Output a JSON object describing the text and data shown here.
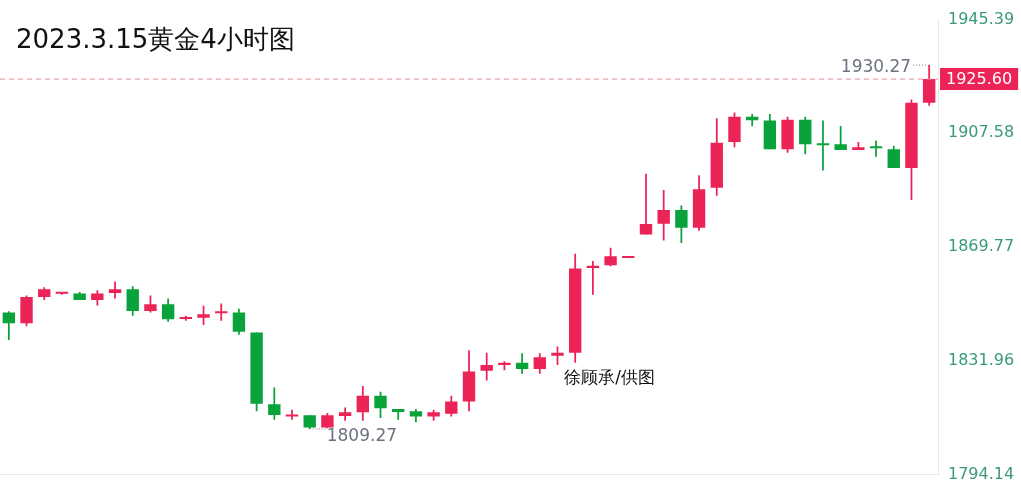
{
  "chart_data": {
    "type": "candlestick",
    "title": "2023.3.15黄金4小时图",
    "categories": [
      null,
      null,
      null,
      null,
      null,
      null,
      null,
      null,
      null,
      null,
      null,
      null,
      null,
      null,
      null,
      null,
      null,
      null,
      null,
      null,
      null,
      null,
      null,
      null,
      null,
      null,
      null,
      null,
      null,
      null,
      null,
      null,
      null,
      null,
      null,
      null,
      null,
      null,
      null,
      null,
      null,
      null,
      null,
      null,
      null,
      null,
      null,
      null,
      null,
      null,
      null,
      null,
      null
    ],
    "ohlc": [
      [
        1848.0,
        1848.4,
        1838.8,
        1844.4
      ],
      [
        1844.4,
        1853.6,
        1843.4,
        1853.1
      ],
      [
        1853.1,
        1856.4,
        1852.1,
        1855.7
      ],
      [
        1854.2,
        1854.8,
        1853.9,
        1854.4
      ],
      [
        1854.3,
        1854.8,
        1852.1,
        1852.1
      ],
      [
        1852.1,
        1855.4,
        1850.3,
        1854.3
      ],
      [
        1854.5,
        1858.3,
        1852.6,
        1855.7
      ],
      [
        1855.7,
        1856.7,
        1846.9,
        1848.5
      ],
      [
        1848.5,
        1853.6,
        1848.0,
        1850.7
      ],
      [
        1850.7,
        1852.6,
        1844.9,
        1845.7
      ],
      [
        1845.8,
        1846.9,
        1845.2,
        1846.1
      ],
      [
        1846.2,
        1850.2,
        1843.8,
        1847.4
      ],
      [
        1847.7,
        1851.0,
        1845.2,
        1848.0
      ],
      [
        1848.0,
        1849.2,
        1840.6,
        1841.6
      ],
      [
        1841.3,
        1841.3,
        1815.1,
        1817.6
      ],
      [
        1817.5,
        1823.0,
        1812.3,
        1813.9
      ],
      [
        1813.4,
        1815.6,
        1812.3,
        1813.7
      ],
      [
        1813.8,
        1813.8,
        1809.27,
        1809.7
      ],
      [
        1809.7,
        1814.6,
        1809.5,
        1813.8
      ],
      [
        1813.6,
        1816.4,
        1812.0,
        1814.8
      ],
      [
        1814.8,
        1823.5,
        1812.0,
        1820.3
      ],
      [
        1820.3,
        1821.6,
        1812.9,
        1816.1
      ],
      [
        1815.9,
        1815.9,
        1812.3,
        1814.9
      ],
      [
        1815.1,
        1815.9,
        1811.5,
        1813.4
      ],
      [
        1813.4,
        1815.6,
        1812.0,
        1814.8
      ],
      [
        1814.3,
        1820.3,
        1813.4,
        1818.4
      ],
      [
        1818.4,
        1835.4,
        1815.1,
        1828.4
      ],
      [
        1828.6,
        1834.6,
        1825.4,
        1830.5
      ],
      [
        1830.5,
        1831.8,
        1828.8,
        1831.3
      ],
      [
        1831.3,
        1834.4,
        1827.6,
        1829.2
      ],
      [
        1829.2,
        1834.4,
        1827.6,
        1833.1
      ],
      [
        1833.6,
        1836.7,
        1830.5,
        1834.6
      ],
      [
        1834.6,
        1867.5,
        1831.3,
        1862.6
      ],
      [
        1862.8,
        1865.1,
        1853.9,
        1863.5
      ],
      [
        1863.7,
        1869.5,
        1863.4,
        1866.7
      ],
      [
        1866.1,
        1866.2,
        1866.1,
        1866.2
      ],
      [
        1873.9,
        1894.1,
        1873.9,
        1877.4
      ],
      [
        1877.5,
        1888.7,
        1871.9,
        1882.1
      ],
      [
        1882.1,
        1883.6,
        1871.1,
        1876.2
      ],
      [
        1876.2,
        1893.6,
        1875.2,
        1889.0
      ],
      [
        1889.5,
        1912.6,
        1886.8,
        1904.4
      ],
      [
        1904.7,
        1914.5,
        1902.9,
        1913.1
      ],
      [
        1913.1,
        1914.0,
        1909.9,
        1911.9
      ],
      [
        1911.8,
        1914.0,
        1902.3,
        1902.3
      ],
      [
        1902.3,
        1913.1,
        1901.1,
        1912.1
      ],
      [
        1912.1,
        1913.1,
        1900.6,
        1903.9
      ],
      [
        1903.9,
        1911.8,
        1895.2,
        1903.6
      ],
      [
        1903.9,
        1910.0,
        1902.0,
        1902.0
      ],
      [
        1902.0,
        1904.7,
        1902.0,
        1902.9
      ],
      [
        1902.8,
        1905.2,
        1899.8,
        1902.6
      ],
      [
        1902.3,
        1903.4,
        1896.0,
        1896.0
      ],
      [
        1896.0,
        1918.8,
        1885.4,
        1917.7
      ],
      [
        1917.7,
        1930.27,
        1916.7,
        1925.6
      ]
    ],
    "colors": [
      "#0aa33b",
      "#ec2356",
      "#ec2356",
      "#ec2356",
      "#0aa33b",
      "#ec2356",
      "#ec2356",
      "#0aa33b",
      "#ec2356",
      "#0aa33b",
      "#ec2356",
      "#ec2356",
      "#ec2356",
      "#0aa33b",
      "#0aa33b",
      "#0aa33b",
      "#ec2356",
      "#0aa33b",
      "#ec2356",
      "#ec2356",
      "#ec2356",
      "#0aa33b",
      "#0aa33b",
      "#0aa33b",
      "#ec2356",
      "#ec2356",
      "#ec2356",
      "#ec2356",
      "#ec2356",
      "#0aa33b",
      "#ec2356",
      "#ec2356",
      "#ec2356",
      "#ec2356",
      "#ec2356",
      "#ec2356",
      "#ec2356",
      "#ec2356",
      "#0aa33b",
      "#ec2356",
      "#ec2356",
      "#ec2356",
      "#0aa33b",
      "#0aa33b",
      "#ec2356",
      "#0aa33b",
      "#0aa33b",
      "#0aa33b",
      "#ec2356",
      "#0aa33b",
      "#0aa33b",
      "#ec2356",
      "#ec2356"
    ],
    "ylim": [
      1794.14,
      1945.39
    ],
    "yticks": [
      1945.39,
      1907.58,
      1869.77,
      1831.96,
      1794.14
    ],
    "ref_lines": [
      {
        "axis": "y",
        "value": 1925.6,
        "label": "1925.60",
        "color": "#f08a94",
        "line_style": "dashed"
      }
    ],
    "annotations": [
      "1930.27",
      "1809.27",
      "徐顾承/供图"
    ],
    "grid": false,
    "legend": false
  }
}
